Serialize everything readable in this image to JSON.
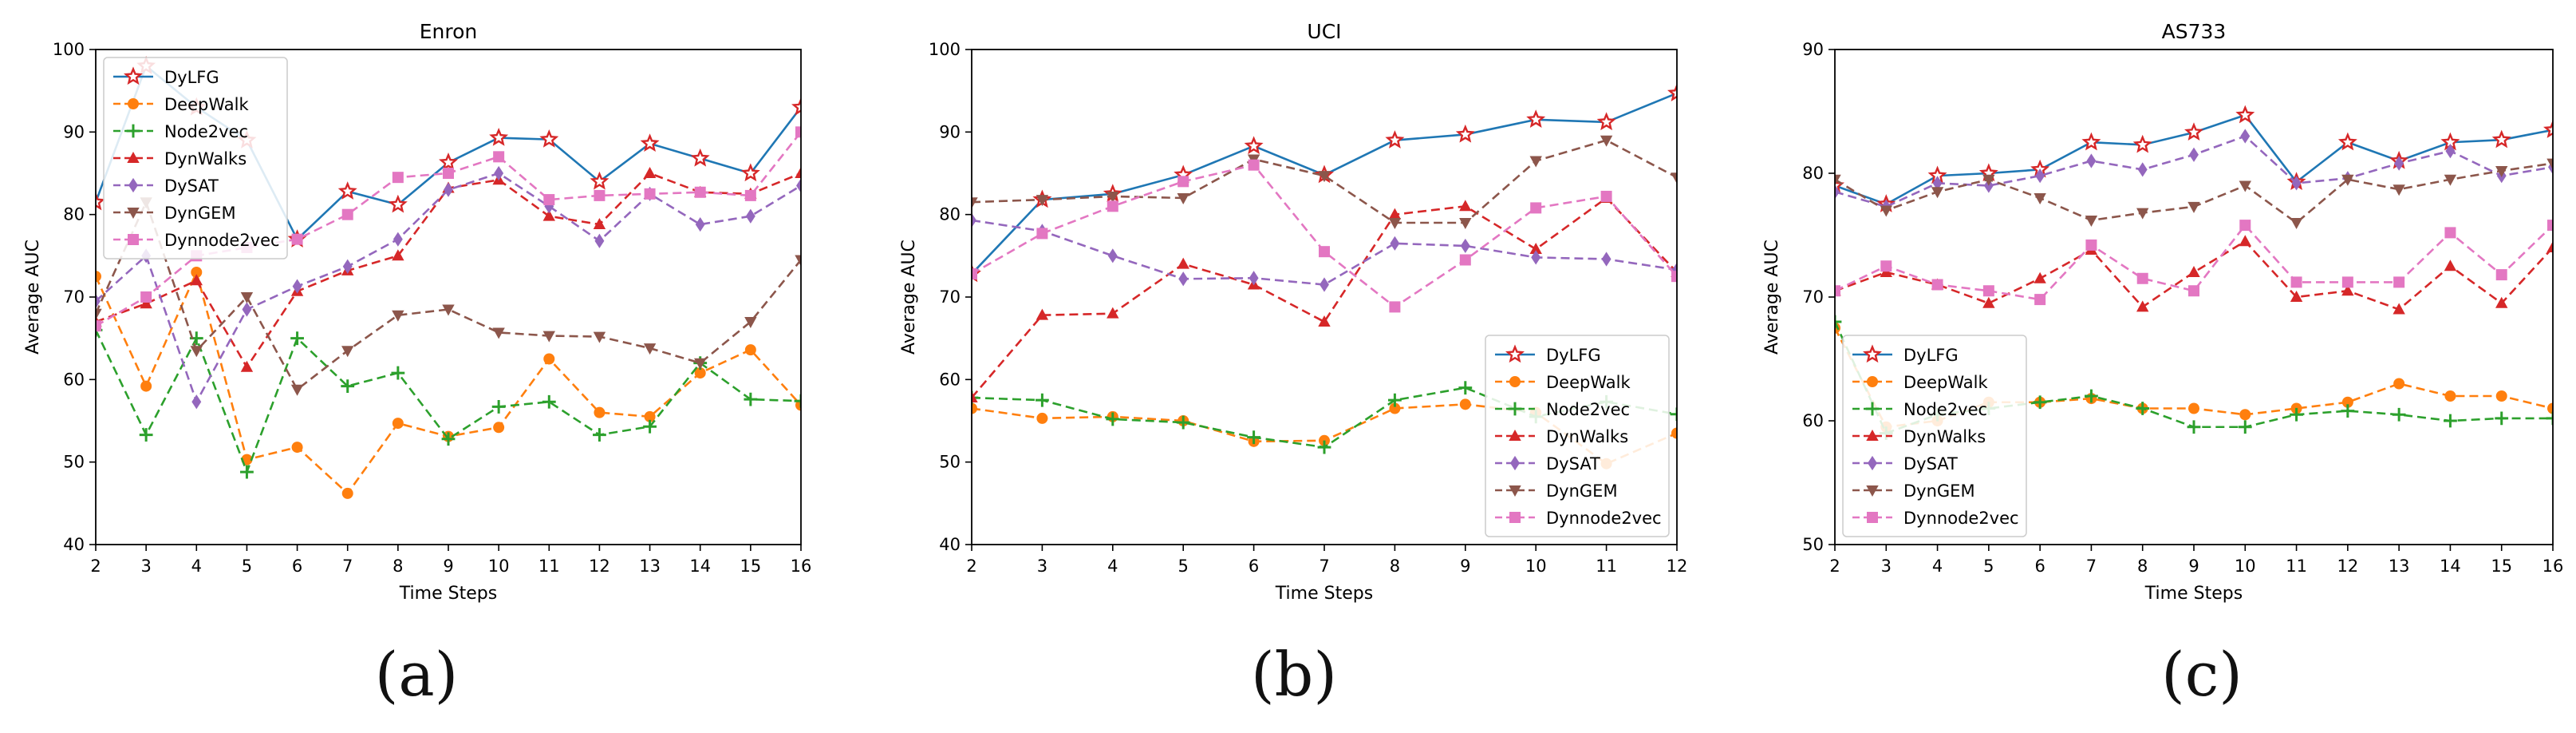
{
  "chart_data": [
    {
      "type": "line",
      "title": "Enron",
      "xlabel": "Time Steps",
      "ylabel": "Average AUC",
      "x": [
        2,
        3,
        4,
        5,
        6,
        7,
        8,
        9,
        10,
        11,
        12,
        13,
        14,
        15,
        16
      ],
      "xlim": [
        2,
        16
      ],
      "ylim": [
        40,
        100
      ],
      "yticks": [
        40,
        50,
        60,
        70,
        80,
        90,
        100
      ],
      "legend": "upper-left",
      "caption": "(a)",
      "series": [
        {
          "name": "DyLFG",
          "color": "#1f77b4",
          "marker": "star",
          "dash": "solid",
          "values": [
            81.5,
            98.0,
            93.0,
            89.0,
            77.0,
            82.8,
            81.2,
            86.3,
            89.3,
            89.1,
            84.0,
            88.6,
            86.8,
            85.0,
            93.0
          ]
        },
        {
          "name": "DeepWalk",
          "color": "#ff7f0e",
          "marker": "circle",
          "dash": "dashed",
          "values": [
            72.5,
            59.2,
            73.0,
            50.3,
            51.8,
            46.2,
            54.7,
            53.1,
            54.2,
            62.5,
            56.0,
            55.5,
            60.8,
            63.6,
            56.9
          ]
        },
        {
          "name": "Node2vec",
          "color": "#2ca02c",
          "marker": "plus",
          "dash": "dashed",
          "values": [
            66.0,
            53.3,
            65.0,
            48.8,
            65.0,
            59.2,
            60.8,
            52.8,
            56.7,
            57.3,
            53.3,
            54.3,
            62.0,
            57.6,
            57.4
          ]
        },
        {
          "name": "DynWalks",
          "color": "#d62728",
          "marker": "triangle",
          "dash": "dashed",
          "values": [
            67.0,
            69.2,
            72.0,
            61.5,
            70.7,
            73.2,
            75.0,
            83.2,
            84.2,
            79.8,
            78.8,
            85.0,
            82.7,
            82.5,
            85.0
          ]
        },
        {
          "name": "DySAT",
          "color": "#9467bd",
          "marker": "diamond",
          "dash": "dashed",
          "values": [
            69.5,
            75.0,
            57.3,
            68.5,
            71.3,
            73.7,
            77.0,
            83.0,
            85.0,
            81.0,
            76.8,
            82.5,
            78.8,
            79.8,
            83.5
          ]
        },
        {
          "name": "DynGEM",
          "color": "#8c564b",
          "marker": "triangle-down",
          "dash": "dashed",
          "values": [
            68.0,
            81.5,
            63.5,
            70.0,
            58.8,
            63.5,
            67.8,
            68.5,
            65.7,
            65.3,
            65.2,
            63.8,
            62.0,
            67.0,
            74.5
          ]
        },
        {
          "name": "Dynnode2vec",
          "color": "#e377c2",
          "marker": "square",
          "dash": "dashed",
          "values": [
            66.5,
            70.0,
            75.0,
            76.0,
            77.0,
            80.0,
            84.5,
            85.0,
            87.0,
            81.8,
            82.3,
            82.5,
            82.7,
            82.3,
            90.0
          ]
        }
      ]
    },
    {
      "type": "line",
      "title": "UCI",
      "xlabel": "Time Steps",
      "ylabel": "Average AUC",
      "x": [
        2,
        3,
        4,
        5,
        6,
        7,
        8,
        9,
        10,
        11,
        12
      ],
      "xlim": [
        2,
        12
      ],
      "ylim": [
        40,
        100
      ],
      "yticks": [
        40,
        50,
        60,
        70,
        80,
        90,
        100
      ],
      "legend": "lower-right",
      "caption": "(b)",
      "series": [
        {
          "name": "DyLFG",
          "color": "#1f77b4",
          "marker": "star",
          "dash": "solid",
          "values": [
            72.8,
            81.8,
            82.5,
            84.8,
            88.3,
            84.8,
            89.0,
            89.7,
            91.5,
            91.2,
            94.7
          ]
        },
        {
          "name": "DeepWalk",
          "color": "#ff7f0e",
          "marker": "circle",
          "dash": "dashed",
          "values": [
            56.5,
            55.3,
            55.5,
            55.0,
            52.5,
            52.6,
            56.5,
            57.0,
            56.0,
            49.8,
            53.5
          ]
        },
        {
          "name": "Node2vec",
          "color": "#2ca02c",
          "marker": "plus",
          "dash": "dashed",
          "values": [
            57.8,
            57.5,
            55.2,
            54.8,
            53.0,
            51.8,
            57.5,
            59.0,
            55.5,
            57.3,
            55.8
          ]
        },
        {
          "name": "DynWalks",
          "color": "#d62728",
          "marker": "triangle",
          "dash": "dashed",
          "values": [
            57.8,
            67.8,
            68.0,
            74.0,
            71.5,
            67.0,
            80.0,
            81.0,
            75.8,
            82.0,
            73.0
          ]
        },
        {
          "name": "DySAT",
          "color": "#9467bd",
          "marker": "diamond",
          "dash": "dashed",
          "values": [
            79.3,
            78.0,
            75.0,
            72.2,
            72.3,
            71.5,
            76.5,
            76.2,
            74.8,
            74.6,
            73.3
          ]
        },
        {
          "name": "DynGEM",
          "color": "#8c564b",
          "marker": "triangle-down",
          "dash": "dashed",
          "values": [
            81.5,
            81.8,
            82.2,
            82.0,
            86.7,
            84.7,
            79.0,
            79.0,
            86.5,
            89.0,
            84.5
          ]
        },
        {
          "name": "Dynnode2vec",
          "color": "#e377c2",
          "marker": "square",
          "dash": "dashed",
          "values": [
            72.8,
            77.7,
            81.0,
            84.0,
            86.0,
            75.5,
            68.8,
            74.5,
            80.8,
            82.2,
            72.5
          ]
        }
      ]
    },
    {
      "type": "line",
      "title": "AS733",
      "xlabel": "Time Steps",
      "ylabel": "Average AUC",
      "x": [
        2,
        3,
        4,
        5,
        6,
        7,
        8,
        9,
        10,
        11,
        12,
        13,
        14,
        15,
        16
      ],
      "xlim": [
        2,
        16
      ],
      "ylim": [
        50,
        90
      ],
      "yticks": [
        50,
        60,
        70,
        80,
        90
      ],
      "legend": "lower-left",
      "caption": "(c)",
      "series": [
        {
          "name": "DyLFG",
          "color": "#1f77b4",
          "marker": "star",
          "dash": "solid",
          "values": [
            79.0,
            77.5,
            79.8,
            80.0,
            80.3,
            82.5,
            82.3,
            83.3,
            84.7,
            79.3,
            82.5,
            81.0,
            82.5,
            82.7,
            83.5
          ]
        },
        {
          "name": "DeepWalk",
          "color": "#ff7f0e",
          "marker": "circle",
          "dash": "dashed",
          "values": [
            67.5,
            59.5,
            60.0,
            61.5,
            61.5,
            61.8,
            61.0,
            61.0,
            60.5,
            61.0,
            61.5,
            63.0,
            62.0,
            62.0,
            61.0
          ]
        },
        {
          "name": "Node2vec",
          "color": "#2ca02c",
          "marker": "plus",
          "dash": "dashed",
          "values": [
            68.0,
            59.0,
            60.5,
            61.0,
            61.5,
            62.0,
            61.0,
            59.5,
            59.5,
            60.5,
            60.8,
            60.5,
            60.0,
            60.2,
            60.2
          ]
        },
        {
          "name": "DynWalks",
          "color": "#d62728",
          "marker": "triangle",
          "dash": "dashed",
          "values": [
            70.5,
            72.0,
            71.0,
            69.5,
            71.5,
            73.8,
            69.2,
            72.0,
            74.5,
            70.0,
            70.5,
            69.0,
            72.5,
            69.5,
            74.0
          ]
        },
        {
          "name": "DySAT",
          "color": "#9467bd",
          "marker": "diamond",
          "dash": "dashed",
          "values": [
            78.5,
            77.3,
            79.2,
            79.0,
            79.8,
            81.0,
            80.3,
            81.5,
            83.0,
            79.2,
            79.6,
            80.8,
            81.8,
            79.8,
            80.5
          ]
        },
        {
          "name": "DynGEM",
          "color": "#8c564b",
          "marker": "triangle-down",
          "dash": "dashed",
          "values": [
            79.5,
            77.0,
            78.5,
            79.5,
            78.0,
            76.2,
            76.8,
            77.3,
            79.0,
            76.0,
            79.5,
            78.7,
            79.5,
            80.2,
            80.8
          ]
        },
        {
          "name": "Dynnode2vec",
          "color": "#e377c2",
          "marker": "square",
          "dash": "dashed",
          "values": [
            70.5,
            72.5,
            71.0,
            70.5,
            69.8,
            74.2,
            71.5,
            70.5,
            75.8,
            71.2,
            71.2,
            71.2,
            75.2,
            71.8,
            75.8
          ]
        }
      ]
    }
  ]
}
